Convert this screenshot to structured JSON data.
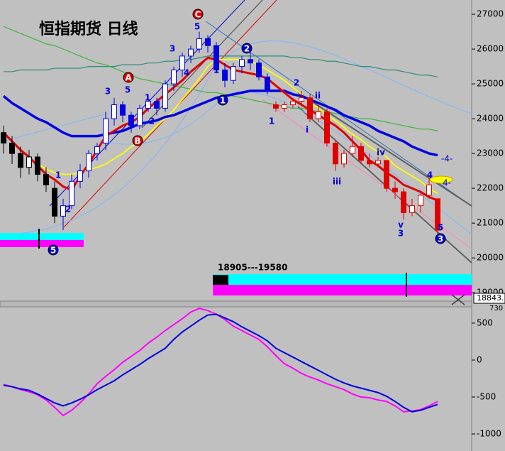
{
  "chart_data": [
    {
      "type": "candlestick",
      "title": "恒指期货 日线",
      "series": [
        {
          "color": "#000000",
          "ohlc": [
            [
              23600,
              23800,
              23000,
              23300
            ],
            [
              23300,
              23500,
              22700,
              23000
            ],
            [
              23000,
              23200,
              22300,
              22600
            ],
            [
              22600,
              23100,
              22400,
              22900
            ],
            [
              22900,
              23000,
              22200,
              22400
            ],
            [
              22400,
              22600,
              21900,
              22100
            ],
            [
              22000,
              22200,
              21000,
              21200
            ]
          ]
        },
        {
          "color": "#0000e0",
          "ohlc": [
            [
              21200,
              21700,
              20800,
              21500
            ],
            [
              21500,
              22400,
              21400,
              22200
            ],
            [
              22200,
              22700,
              22000,
              22500
            ],
            [
              22500,
              23100,
              22300,
              23000
            ],
            [
              23000,
              23300,
              22800,
              23200
            ],
            [
              23300,
              24200,
              23100,
              24000
            ],
            [
              24000,
              24600,
              23800,
              24400
            ],
            [
              24400,
              24500,
              23900,
              24100
            ],
            [
              24100,
              24200,
              23600,
              23800
            ],
            [
              23800,
              24400,
              23700,
              24300
            ],
            [
              24300,
              24700,
              24200,
              24500
            ],
            [
              24500,
              24600,
              24100,
              24300
            ],
            [
              24300,
              25100,
              24200,
              25000
            ],
            [
              25000,
              25500,
              24800,
              25400
            ],
            [
              25400,
              25900,
              25200,
              25800
            ],
            [
              25800,
              26100,
              25600,
              26000
            ],
            [
              26000,
              26500,
              25900,
              26300
            ],
            [
              26300,
              26400,
              25900,
              26100
            ],
            [
              26100,
              26200,
              25300,
              25400
            ],
            [
              25400,
              25600,
              24900,
              25100
            ],
            [
              25100,
              25600,
              25000,
              25500
            ],
            [
              25500,
              25800,
              25300,
              25700
            ],
            [
              25700,
              25900,
              25400,
              25600
            ],
            [
              25600,
              25700,
              25100,
              25200
            ],
            [
              25200,
              25300,
              24700,
              24800
            ]
          ]
        },
        {
          "color": "#e00000",
          "ohlc": [
            [
              24400,
              24500,
              24200,
              24300
            ],
            [
              24300,
              24500,
              24200,
              24400
            ],
            [
              24400,
              24600,
              24300,
              24500
            ],
            [
              24500,
              24800,
              24400,
              24600
            ],
            [
              24600,
              24700,
              23900,
              24000
            ],
            [
              24000,
              24400,
              23900,
              24200
            ],
            [
              24200,
              24300,
              23200,
              23300
            ],
            [
              23300,
              23400,
              22500,
              22700
            ],
            [
              22700,
              23100,
              22600,
              23000
            ],
            [
              23000,
              23500,
              22900,
              23200
            ],
            [
              23200,
              23300,
              22700,
              22800
            ],
            [
              22800,
              23000,
              22600,
              22700
            ],
            [
              22700,
              22900,
              22600,
              22800
            ],
            [
              22800,
              22800,
              21900,
              22000
            ],
            [
              22000,
              22200,
              21700,
              21900
            ],
            [
              21900,
              22000,
              21100,
              21300
            ],
            [
              21300,
              21700,
              21200,
              21500
            ],
            [
              21500,
              21900,
              21300,
              21800
            ],
            [
              21800,
              22300,
              21700,
              22100
            ],
            [
              21700,
              21700,
              20700,
              20800
            ]
          ]
        }
      ],
      "lines": [
        {
          "color": "#2e8b7a",
          "width": 1.2,
          "values": [
            25350,
            25350,
            25400,
            25400,
            25400,
            25400,
            25450,
            25450,
            25450,
            25450,
            25500,
            25500,
            25500,
            25500,
            25550,
            25550,
            25550,
            25600,
            25600,
            25650,
            25650,
            25700,
            25700,
            25750,
            25800,
            25800,
            25800,
            25800,
            25800,
            25800,
            25800,
            25800,
            25800,
            25800,
            25750,
            25750,
            25700,
            25700,
            25650,
            25650,
            25600,
            25550,
            25500,
            25500,
            25450,
            25400,
            25400,
            25350,
            25300,
            25250,
            25250,
            25200
          ]
        },
        {
          "color": "#3cb43c",
          "width": 1.2,
          "values": [
            26650,
            26550,
            26450,
            26350,
            26250,
            26150,
            26100,
            26000,
            25900,
            25800,
            25700,
            25600,
            25550,
            25450,
            25350,
            25250,
            25150,
            25100,
            25050,
            25000,
            24950,
            24900,
            24850,
            24800,
            24750,
            24750,
            24700,
            24650,
            24600,
            24550,
            24500,
            24450,
            24400,
            24350,
            24300,
            24300,
            24250,
            24200,
            24200,
            24150,
            24100,
            24050,
            24000,
            24000,
            23950,
            23900,
            23850,
            23800,
            23750,
            23700,
            23700,
            23650
          ]
        },
        {
          "color": "#ffff00",
          "width": 1.8,
          "values": [
            23600,
            23350,
            23100,
            22900,
            22700,
            22550,
            22450,
            22400,
            22400,
            22450,
            22550,
            22600,
            22700,
            22850,
            23000,
            23200,
            23350,
            23550,
            23800,
            24000,
            24250,
            24550,
            24850,
            25150,
            25500,
            25700,
            25700,
            25700,
            25700,
            25650,
            25550,
            25400,
            25250,
            25100,
            24900,
            24700,
            24450,
            24300,
            24100,
            23950,
            23750,
            23550,
            23400,
            23200,
            23050,
            22900,
            22650,
            22500,
            22350,
            22200,
            22000,
            21850
          ]
        },
        {
          "color": "#0000e0",
          "width": 3.5,
          "values": [
            24650,
            24450,
            24300,
            24150,
            24000,
            23900,
            23750,
            23600,
            23500,
            23500,
            23500,
            23500,
            23550,
            23600,
            23650,
            23750,
            23850,
            23900,
            23950,
            24050,
            24100,
            24200,
            24300,
            24400,
            24500,
            24600,
            24650,
            24700,
            24750,
            24800,
            24800,
            24800,
            24800,
            24800,
            24700,
            24650,
            24550,
            24450,
            24350,
            24250,
            24100,
            24000,
            23900,
            23800,
            23650,
            23550,
            23450,
            23350,
            23200,
            23100,
            23000,
            22950
          ]
        },
        {
          "color": "#e00000",
          "width": 3,
          "values": [
            23600,
            23350,
            23100,
            22900,
            22650,
            22400,
            22250,
            22050,
            21950,
            22350,
            22700,
            23100,
            23500,
            23650,
            23800,
            23900,
            24050,
            24300,
            24500,
            24700,
            24900,
            25100,
            25350,
            25550,
            25750,
            25700,
            25550,
            25400,
            25350,
            25300,
            25250,
            25150,
            24950,
            24750,
            24550,
            24400,
            24250,
            24100,
            23950,
            23800,
            23600,
            23350,
            23100,
            22800,
            22650,
            22450,
            22300,
            22100,
            22000,
            21900,
            21750,
            21650
          ]
        }
      ],
      "ylim": [
        18840,
        27410
      ],
      "yticks": [
        19000,
        20000,
        21000,
        22000,
        23000,
        24000,
        25000,
        26000,
        27000
      ],
      "range_label": "18905---19580",
      "last_price": "18843.",
      "side_labels": [
        "-4-",
        "4-"
      ],
      "wave_labels": [
        {
          "text": "5",
          "circled": true,
          "color": "#0000e0"
        },
        {
          "text": "1",
          "color": "#0000e0"
        },
        {
          "text": "2",
          "color": "#0000e0"
        },
        {
          "text": "3",
          "color": "#0000e0"
        },
        {
          "text": "5",
          "color": "#0000e0"
        },
        {
          "text": "A",
          "circled": true,
          "color": "#e00000"
        },
        {
          "text": "B",
          "circled": true,
          "color": "#e00000"
        },
        {
          "text": "1",
          "color": "#0000e0"
        },
        {
          "text": "2",
          "color": "#0000e0"
        },
        {
          "text": "3",
          "color": "#0000e0"
        },
        {
          "text": "4",
          "color": "#0000e0"
        },
        {
          "text": "5",
          "color": "#0000e0"
        },
        {
          "text": "C",
          "circled": true,
          "color": "#e00000"
        },
        {
          "text": "1",
          "color": "#0000e0"
        },
        {
          "text": "1",
          "circled": true,
          "color": "#0000e0"
        },
        {
          "text": "2",
          "circled": true,
          "color": "#0000e0"
        },
        {
          "text": "1",
          "color": "#0000e0"
        },
        {
          "text": "2",
          "color": "#0000e0"
        },
        {
          "text": "i",
          "color": "#0000e0"
        },
        {
          "text": "ii",
          "color": "#0000e0"
        },
        {
          "text": "iii",
          "color": "#0000e0"
        },
        {
          "text": "iv",
          "color": "#0000e0"
        },
        {
          "text": "v",
          "color": "#0000e0"
        },
        {
          "text": "3",
          "color": "#0000e0"
        },
        {
          "text": "4",
          "color": "#0000e0"
        },
        {
          "text": "5",
          "color": "#0000e0"
        },
        {
          "text": "3",
          "circled": true,
          "color": "#0000e0"
        }
      ]
    },
    {
      "type": "line",
      "top_label": "730",
      "series": [
        {
          "color": "#ff00ff",
          "values": [
            -330,
            -360,
            -400,
            -430,
            -470,
            -540,
            -640,
            -750,
            -680,
            -580,
            -460,
            -320,
            -220,
            -130,
            -30,
            50,
            130,
            230,
            310,
            400,
            480,
            560,
            650,
            700,
            670,
            620,
            550,
            460,
            400,
            340,
            280,
            180,
            60,
            -50,
            -110,
            -180,
            -230,
            -270,
            -320,
            -360,
            -400,
            -460,
            -500,
            -510,
            -540,
            -560,
            -620,
            -700,
            -690,
            -670,
            -620,
            -560
          ]
        },
        {
          "color": "#0000e0",
          "values": [
            -340,
            -360,
            -390,
            -410,
            -460,
            -520,
            -580,
            -620,
            -580,
            -530,
            -470,
            -400,
            -340,
            -280,
            -200,
            -130,
            -60,
            20,
            90,
            160,
            280,
            380,
            460,
            540,
            610,
            620,
            570,
            520,
            450,
            390,
            330,
            260,
            160,
            100,
            40,
            -20,
            -80,
            -140,
            -200,
            -260,
            -310,
            -350,
            -380,
            -410,
            -440,
            -490,
            -560,
            -640,
            -700,
            -680,
            -640,
            -600
          ]
        }
      ],
      "ylim": [
        -1231,
        721
      ],
      "yticks": [
        500,
        0,
        -500,
        -1000
      ]
    }
  ]
}
